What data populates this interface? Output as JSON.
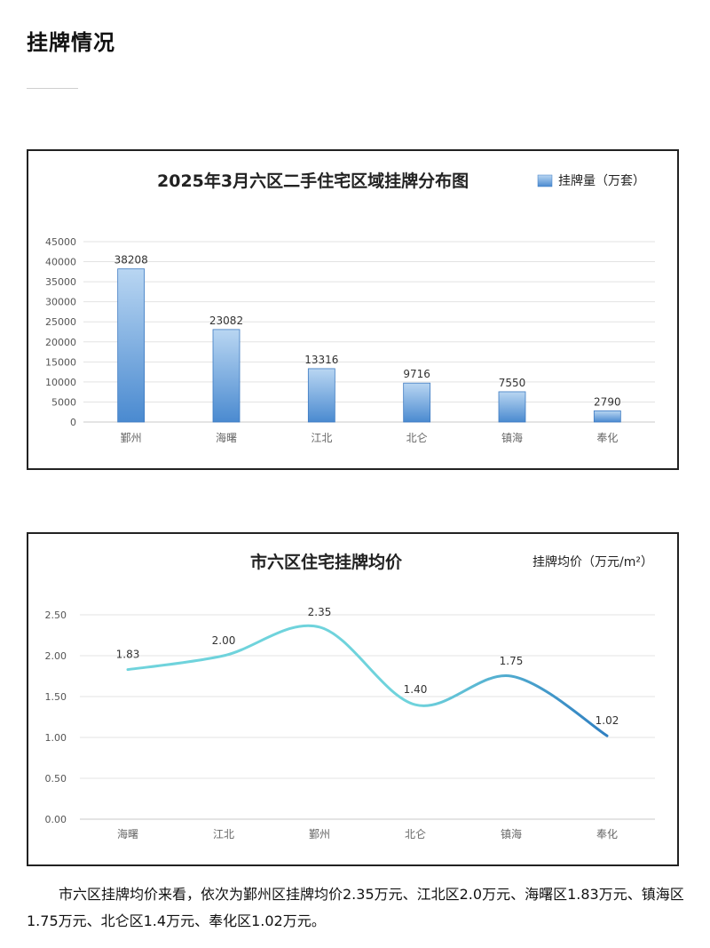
{
  "section": {
    "title": "挂牌情况"
  },
  "colors": {
    "bar_top": "#b9d6f2",
    "bar_bottom": "#4a8ad0",
    "bar_border": "#3d7ac2",
    "line_start": "#6fd3dc",
    "line_end": "#2f7fc1",
    "grid": "#e3e3e3"
  },
  "chart_data": [
    {
      "type": "bar",
      "title": "2025年3月六区二手住宅区域挂牌分布图",
      "legend": "挂牌量（万套）",
      "legend_position": "top-right",
      "categories": [
        "鄞州",
        "海曙",
        "江北",
        "北仑",
        "镇海",
        "奉化"
      ],
      "values": [
        38208,
        23082,
        13316,
        9716,
        7550,
        2790
      ],
      "value_labels": [
        "38208",
        "23082",
        "13316",
        "9716",
        "7550",
        "2790"
      ],
      "yticks": [
        "0",
        "5000",
        "10000",
        "15000",
        "20000",
        "25000",
        "30000",
        "35000",
        "40000",
        "45000"
      ],
      "ylim": [
        0,
        45000
      ],
      "grid": true
    },
    {
      "type": "line",
      "title": "市六区住宅挂牌均价",
      "legend": "挂牌均价（万元/m²）",
      "legend_position": "top-right",
      "categories": [
        "海曙",
        "江北",
        "鄞州",
        "北仑",
        "镇海",
        "奉化"
      ],
      "values": [
        1.83,
        2.0,
        2.35,
        1.4,
        1.75,
        1.02
      ],
      "value_labels": [
        "1.83",
        "2.00",
        "2.35",
        "1.40",
        "1.75",
        "1.02"
      ],
      "yticks": [
        "0.00",
        "0.50",
        "1.00",
        "1.50",
        "2.00",
        "2.50"
      ],
      "ylim": [
        0,
        2.5
      ],
      "grid": true,
      "smooth": true
    }
  ],
  "caption": "市六区挂牌均价来看，依次为鄞州区挂牌均价2.35万元、江北区2.0万元、海曙区1.83万元、镇海区1.75万元、北仑区1.4万元、奉化区1.02万元。"
}
